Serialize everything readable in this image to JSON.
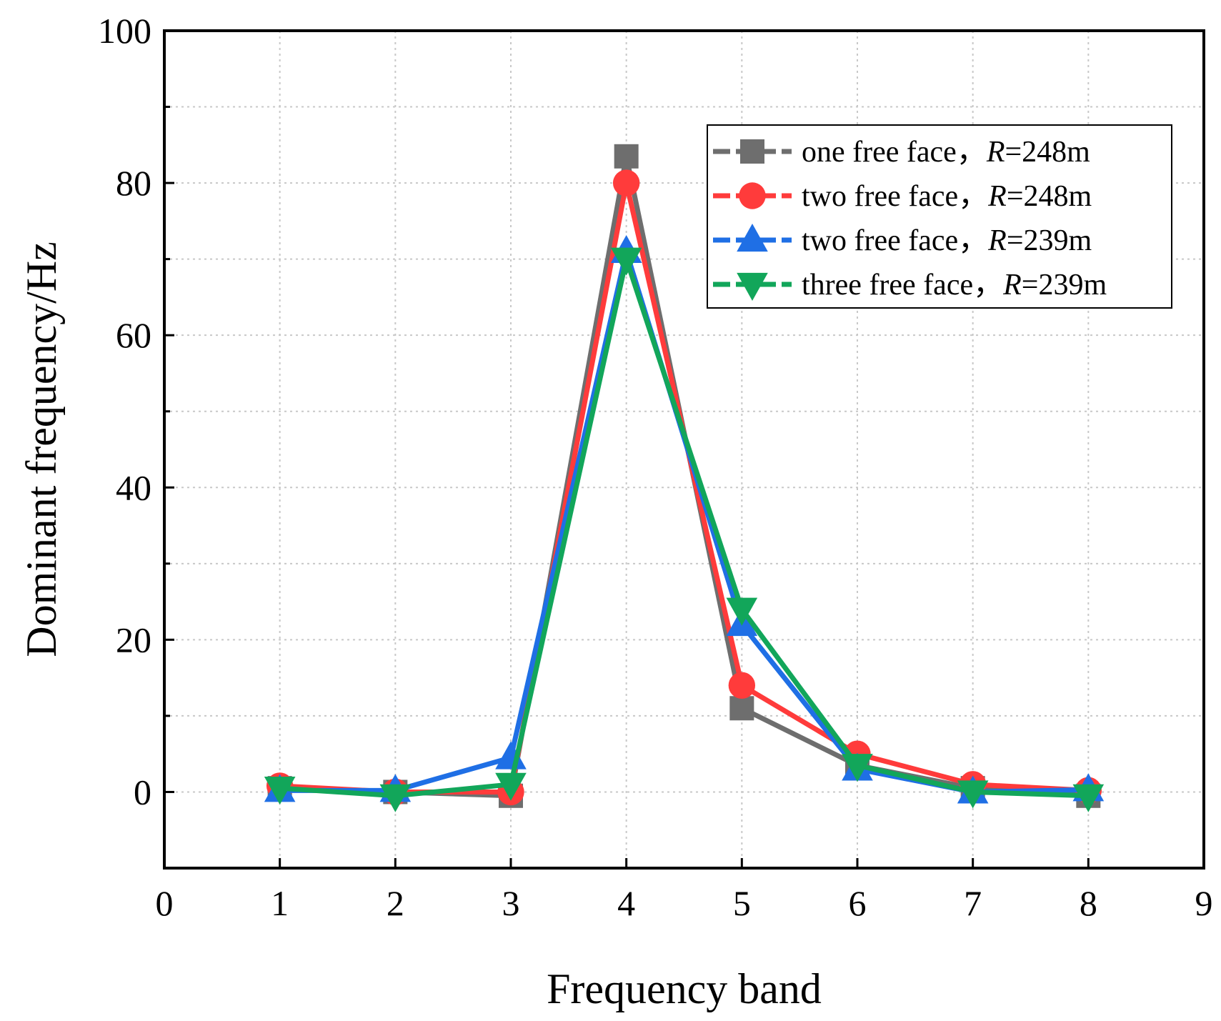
{
  "chart_data": {
    "type": "line",
    "title": "",
    "xlabel": "Frequency band",
    "ylabel": "Dominant frequency/Hz",
    "xlim": [
      0,
      9
    ],
    "ylim": [
      -10,
      100
    ],
    "xticks": [
      "0",
      "1",
      "2",
      "3",
      "4",
      "5",
      "6",
      "7",
      "8",
      "9"
    ],
    "yticks": [
      "0",
      "20",
      "40",
      "60",
      "80",
      "100"
    ],
    "grid": true,
    "legend_position": "top-right",
    "x": [
      1,
      2,
      3,
      4,
      5,
      6,
      7,
      8
    ],
    "series": [
      {
        "name": "one free face，",
        "r_symbol": "R",
        "r_value": "=248m",
        "marker": "square",
        "color": "#6e6e6e",
        "values": [
          0.5,
          0,
          -0.5,
          83.5,
          11,
          3.5,
          0.5,
          -0.5
        ]
      },
      {
        "name": "two free face，",
        "r_symbol": "R",
        "r_value": "=248m",
        "marker": "circle",
        "color": "#ff3b3b",
        "values": [
          0.8,
          0,
          0,
          80,
          14,
          5,
          1,
          0.2
        ]
      },
      {
        "name": "two free face，",
        "r_symbol": "R",
        "r_value": "=239m",
        "marker": "triangle-up",
        "color": "#1f6fe5",
        "values": [
          0.2,
          0.2,
          4.5,
          71,
          22,
          3,
          0,
          0.3
        ]
      },
      {
        "name": "three free face，",
        "r_symbol": "R",
        "r_value": "=239m",
        "marker": "triangle-down",
        "color": "#12a65a",
        "values": [
          0.5,
          -0.5,
          1,
          70,
          24,
          3.5,
          0,
          -0.5
        ]
      }
    ]
  }
}
